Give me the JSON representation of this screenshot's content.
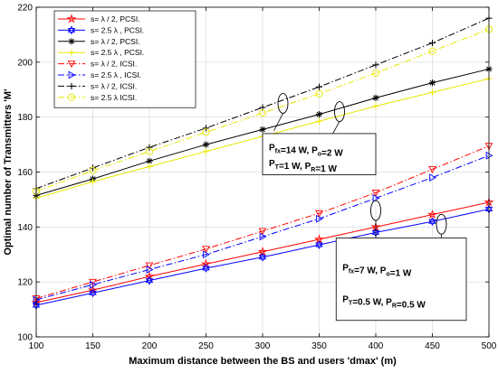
{
  "chart_data": {
    "type": "line",
    "title": "",
    "xlabel": "Maximum distance between the BS and users 'dmax' (m)",
    "ylabel": "Optimal number of Transmitters 'M'",
    "xlim": [
      100,
      500
    ],
    "ylim": [
      100,
      220
    ],
    "x_ticks": [
      100,
      150,
      200,
      250,
      300,
      350,
      400,
      450,
      500
    ],
    "y_ticks": [
      100,
      120,
      140,
      160,
      180,
      200,
      220
    ],
    "grid": true,
    "legend_position": "top-left",
    "x": [
      100,
      150,
      200,
      250,
      300,
      350,
      400,
      450,
      500
    ],
    "series": [
      {
        "name": "s= λ / 2, PCSI.",
        "color": "#ff0000",
        "dash": "solid",
        "marker": "star",
        "values": [
          112.5,
          117,
          122,
          126.5,
          131,
          135.5,
          140,
          144.5,
          149
        ]
      },
      {
        "name": "s= 2.5 λ , PCSI.",
        "color": "#0000ff",
        "dash": "solid",
        "marker": "hexagram",
        "values": [
          111.5,
          116,
          120.5,
          125,
          129,
          133.5,
          138,
          142,
          146.5
        ]
      },
      {
        "name": "s= λ / 2, PCSI.",
        "color": "#000000",
        "dash": "solid",
        "marker": "asterisk",
        "values": [
          151.5,
          157.5,
          164,
          170,
          175.5,
          181,
          187,
          192.5,
          197.5
        ]
      },
      {
        "name": "s= 2.5 λ , PCSI.",
        "color": "#e8e800",
        "dash": "solid",
        "marker": "plus",
        "values": [
          150.5,
          156.5,
          162,
          167.5,
          173,
          178.5,
          184,
          189,
          194
        ]
      },
      {
        "name": "s= λ / 2, ICSI.",
        "color": "#ff0000",
        "dash": "dashdot",
        "marker": "triangle-down",
        "values": [
          114,
          120,
          126,
          132,
          138.5,
          145,
          152.5,
          161,
          169.5
        ]
      },
      {
        "name": "s= 2.5 λ , ICSI.",
        "color": "#0000ff",
        "dash": "dashdot",
        "marker": "triangle-right",
        "values": [
          113.5,
          119,
          124.5,
          130,
          136.5,
          143,
          150.5,
          158,
          166
        ]
      },
      {
        "name": "s= λ / 2, ICSI.",
        "color": "#000000",
        "dash": "dashdot",
        "marker": "plus",
        "values": [
          154,
          161.5,
          169,
          176,
          183.5,
          191,
          199,
          207,
          216
        ]
      },
      {
        "name": "s= 2.5 λ  ICSI.",
        "color": "#e8e800",
        "dash": "dashdot",
        "marker": "circle",
        "values": [
          153,
          160.5,
          167.5,
          174.5,
          181.5,
          188.5,
          196,
          204,
          212
        ]
      }
    ],
    "annotations": [
      {
        "lines": [
          [
            {
              "t": "P"
            },
            {
              "t": "fx",
              "sub": true
            },
            {
              "t": "=14 W, P"
            },
            {
              "t": "o",
              "sub": true
            },
            {
              "t": "=2 W"
            }
          ],
          [
            {
              "t": "P"
            },
            {
              "t": "T",
              "sub": true
            },
            {
              "t": "=1 W, P"
            },
            {
              "t": "R",
              "sub": true
            },
            {
              "t": "=1 W"
            }
          ]
        ],
        "box_x": [
          300,
          400
        ],
        "box_y": [
          174,
          159
        ],
        "ellipses": [
          {
            "x": 318,
            "y": 185
          },
          {
            "x": 368,
            "y": 182
          }
        ],
        "pointers": [
          {
            "x": 310,
            "y": 175
          },
          {
            "x": 362,
            "y": 174
          }
        ]
      },
      {
        "lines": [
          [
            {
              "t": "P"
            },
            {
              "t": "fx",
              "sub": true
            },
            {
              "t": "=7 W, P"
            },
            {
              "t": "o",
              "sub": true
            },
            {
              "t": "=1 W"
            }
          ],
          [
            {
              "t": "P"
            },
            {
              "t": "T",
              "sub": true
            },
            {
              "t": "=0.5 W, P"
            },
            {
              "t": "R",
              "sub": true
            },
            {
              "t": "=0.5 W"
            }
          ]
        ],
        "box_x": [
          365,
          480
        ],
        "box_y": [
          136,
          106
        ],
        "ellipses": [
          {
            "x": 400,
            "y": 146
          },
          {
            "x": 458,
            "y": 141
          }
        ],
        "pointers": [
          {
            "x": 400,
            "y": 136
          },
          {
            "x": 458,
            "y": 136
          }
        ]
      }
    ]
  }
}
